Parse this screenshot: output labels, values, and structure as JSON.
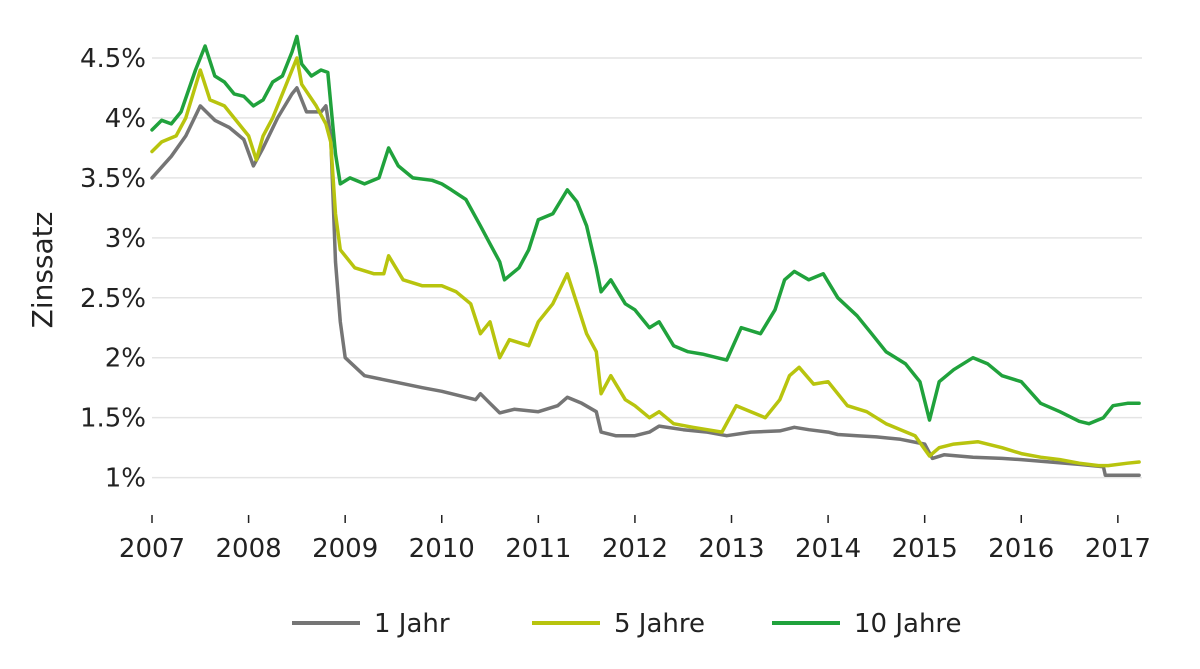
{
  "chart_data": {
    "type": "line",
    "title": "",
    "xlabel": "",
    "ylabel": "Zinssatz",
    "xlim": [
      2007.0,
      2017.25
    ],
    "ylim": [
      0.73,
      4.8
    ],
    "grid": true,
    "legend_position": "bottom",
    "x_ticks": [
      2007,
      2008,
      2009,
      2010,
      2011,
      2012,
      2013,
      2014,
      2015,
      2016,
      2017
    ],
    "x_tick_labels": [
      "2007",
      "2008",
      "2009",
      "2010",
      "2011",
      "2012",
      "2013",
      "2014",
      "2015",
      "2016",
      "2017"
    ],
    "y_ticks": [
      1,
      1.5,
      2,
      2.5,
      3,
      3.5,
      4,
      4.5
    ],
    "y_tick_labels": [
      "1%",
      "1.5%",
      "2%",
      "2.5%",
      "3%",
      "3.5%",
      "4%",
      "4.5%"
    ],
    "series": [
      {
        "name": "1 Jahr",
        "color": "#757575",
        "points": [
          [
            2007.0,
            3.5
          ],
          [
            2007.2,
            3.68
          ],
          [
            2007.35,
            3.85
          ],
          [
            2007.5,
            4.1
          ],
          [
            2007.65,
            3.98
          ],
          [
            2007.8,
            3.92
          ],
          [
            2007.95,
            3.82
          ],
          [
            2008.05,
            3.6
          ],
          [
            2008.15,
            3.75
          ],
          [
            2008.3,
            4.0
          ],
          [
            2008.45,
            4.2
          ],
          [
            2008.5,
            4.25
          ],
          [
            2008.6,
            4.05
          ],
          [
            2008.75,
            4.05
          ],
          [
            2008.8,
            4.1
          ],
          [
            2008.85,
            3.85
          ],
          [
            2008.9,
            2.8
          ],
          [
            2008.95,
            2.3
          ],
          [
            2009.0,
            2.0
          ],
          [
            2009.2,
            1.85
          ],
          [
            2009.5,
            1.8
          ],
          [
            2009.8,
            1.75
          ],
          [
            2010.0,
            1.72
          ],
          [
            2010.2,
            1.68
          ],
          [
            2010.35,
            1.65
          ],
          [
            2010.4,
            1.7
          ],
          [
            2010.5,
            1.62
          ],
          [
            2010.6,
            1.54
          ],
          [
            2010.75,
            1.57
          ],
          [
            2011.0,
            1.55
          ],
          [
            2011.2,
            1.6
          ],
          [
            2011.3,
            1.67
          ],
          [
            2011.45,
            1.62
          ],
          [
            2011.6,
            1.55
          ],
          [
            2011.65,
            1.38
          ],
          [
            2011.8,
            1.35
          ],
          [
            2012.0,
            1.35
          ],
          [
            2012.15,
            1.38
          ],
          [
            2012.25,
            1.43
          ],
          [
            2012.5,
            1.4
          ],
          [
            2012.75,
            1.38
          ],
          [
            2012.95,
            1.35
          ],
          [
            2013.2,
            1.38
          ],
          [
            2013.5,
            1.39
          ],
          [
            2013.65,
            1.42
          ],
          [
            2013.8,
            1.4
          ],
          [
            2014.0,
            1.38
          ],
          [
            2014.1,
            1.36
          ],
          [
            2014.3,
            1.35
          ],
          [
            2014.5,
            1.34
          ],
          [
            2014.75,
            1.32
          ],
          [
            2015.0,
            1.28
          ],
          [
            2015.08,
            1.16
          ],
          [
            2015.2,
            1.19
          ],
          [
            2015.5,
            1.17
          ],
          [
            2015.8,
            1.16
          ],
          [
            2016.0,
            1.15
          ],
          [
            2016.3,
            1.13
          ],
          [
            2016.6,
            1.11
          ],
          [
            2016.85,
            1.09
          ],
          [
            2016.87,
            1.02
          ],
          [
            2017.0,
            1.02
          ],
          [
            2017.22,
            1.02
          ]
        ]
      },
      {
        "name": "5 Jahre",
        "color": "#b8c40e",
        "points": [
          [
            2007.0,
            3.72
          ],
          [
            2007.1,
            3.8
          ],
          [
            2007.25,
            3.85
          ],
          [
            2007.35,
            4.0
          ],
          [
            2007.5,
            4.4
          ],
          [
            2007.6,
            4.15
          ],
          [
            2007.75,
            4.1
          ],
          [
            2007.9,
            3.95
          ],
          [
            2008.0,
            3.85
          ],
          [
            2008.08,
            3.65
          ],
          [
            2008.15,
            3.85
          ],
          [
            2008.25,
            4.0
          ],
          [
            2008.35,
            4.2
          ],
          [
            2008.5,
            4.5
          ],
          [
            2008.55,
            4.28
          ],
          [
            2008.7,
            4.1
          ],
          [
            2008.8,
            3.95
          ],
          [
            2008.85,
            3.8
          ],
          [
            2008.9,
            3.2
          ],
          [
            2008.95,
            2.9
          ],
          [
            2009.1,
            2.75
          ],
          [
            2009.3,
            2.7
          ],
          [
            2009.4,
            2.7
          ],
          [
            2009.45,
            2.85
          ],
          [
            2009.6,
            2.65
          ],
          [
            2009.8,
            2.6
          ],
          [
            2010.0,
            2.6
          ],
          [
            2010.15,
            2.55
          ],
          [
            2010.3,
            2.45
          ],
          [
            2010.4,
            2.2
          ],
          [
            2010.5,
            2.3
          ],
          [
            2010.6,
            2.0
          ],
          [
            2010.7,
            2.15
          ],
          [
            2010.9,
            2.1
          ],
          [
            2011.0,
            2.3
          ],
          [
            2011.15,
            2.45
          ],
          [
            2011.3,
            2.7
          ],
          [
            2011.4,
            2.45
          ],
          [
            2011.5,
            2.2
          ],
          [
            2011.6,
            2.05
          ],
          [
            2011.65,
            1.7
          ],
          [
            2011.75,
            1.85
          ],
          [
            2011.9,
            1.65
          ],
          [
            2012.0,
            1.6
          ],
          [
            2012.15,
            1.5
          ],
          [
            2012.25,
            1.55
          ],
          [
            2012.4,
            1.45
          ],
          [
            2012.6,
            1.42
          ],
          [
            2012.75,
            1.4
          ],
          [
            2012.9,
            1.38
          ],
          [
            2013.05,
            1.6
          ],
          [
            2013.2,
            1.55
          ],
          [
            2013.35,
            1.5
          ],
          [
            2013.5,
            1.65
          ],
          [
            2013.6,
            1.85
          ],
          [
            2013.7,
            1.92
          ],
          [
            2013.85,
            1.78
          ],
          [
            2014.0,
            1.8
          ],
          [
            2014.2,
            1.6
          ],
          [
            2014.4,
            1.55
          ],
          [
            2014.6,
            1.45
          ],
          [
            2014.75,
            1.4
          ],
          [
            2014.9,
            1.35
          ],
          [
            2015.05,
            1.18
          ],
          [
            2015.15,
            1.25
          ],
          [
            2015.3,
            1.28
          ],
          [
            2015.55,
            1.3
          ],
          [
            2015.8,
            1.25
          ],
          [
            2016.0,
            1.2
          ],
          [
            2016.2,
            1.17
          ],
          [
            2016.4,
            1.15
          ],
          [
            2016.6,
            1.12
          ],
          [
            2016.8,
            1.1
          ],
          [
            2016.9,
            1.1
          ],
          [
            2017.1,
            1.12
          ],
          [
            2017.22,
            1.13
          ]
        ]
      },
      {
        "name": "10 Jahre",
        "color": "#20a23c",
        "points": [
          [
            2007.0,
            3.9
          ],
          [
            2007.1,
            3.98
          ],
          [
            2007.2,
            3.95
          ],
          [
            2007.3,
            4.05
          ],
          [
            2007.45,
            4.4
          ],
          [
            2007.55,
            4.6
          ],
          [
            2007.65,
            4.35
          ],
          [
            2007.75,
            4.3
          ],
          [
            2007.85,
            4.2
          ],
          [
            2007.95,
            4.18
          ],
          [
            2008.05,
            4.1
          ],
          [
            2008.15,
            4.15
          ],
          [
            2008.25,
            4.3
          ],
          [
            2008.35,
            4.35
          ],
          [
            2008.45,
            4.55
          ],
          [
            2008.5,
            4.68
          ],
          [
            2008.55,
            4.45
          ],
          [
            2008.65,
            4.35
          ],
          [
            2008.75,
            4.4
          ],
          [
            2008.82,
            4.38
          ],
          [
            2008.9,
            3.7
          ],
          [
            2008.95,
            3.45
          ],
          [
            2009.05,
            3.5
          ],
          [
            2009.2,
            3.45
          ],
          [
            2009.35,
            3.5
          ],
          [
            2009.45,
            3.75
          ],
          [
            2009.55,
            3.6
          ],
          [
            2009.7,
            3.5
          ],
          [
            2009.9,
            3.48
          ],
          [
            2010.0,
            3.45
          ],
          [
            2010.1,
            3.4
          ],
          [
            2010.25,
            3.32
          ],
          [
            2010.4,
            3.1
          ],
          [
            2010.5,
            2.95
          ],
          [
            2010.6,
            2.8
          ],
          [
            2010.65,
            2.65
          ],
          [
            2010.8,
            2.75
          ],
          [
            2010.9,
            2.9
          ],
          [
            2011.0,
            3.15
          ],
          [
            2011.15,
            3.2
          ],
          [
            2011.3,
            3.4
          ],
          [
            2011.4,
            3.3
          ],
          [
            2011.5,
            3.1
          ],
          [
            2011.6,
            2.75
          ],
          [
            2011.65,
            2.55
          ],
          [
            2011.75,
            2.65
          ],
          [
            2011.9,
            2.45
          ],
          [
            2012.0,
            2.4
          ],
          [
            2012.15,
            2.25
          ],
          [
            2012.25,
            2.3
          ],
          [
            2012.4,
            2.1
          ],
          [
            2012.55,
            2.05
          ],
          [
            2012.7,
            2.03
          ],
          [
            2012.85,
            2.0
          ],
          [
            2012.95,
            1.98
          ],
          [
            2013.1,
            2.25
          ],
          [
            2013.3,
            2.2
          ],
          [
            2013.45,
            2.4
          ],
          [
            2013.55,
            2.65
          ],
          [
            2013.65,
            2.72
          ],
          [
            2013.8,
            2.65
          ],
          [
            2013.95,
            2.7
          ],
          [
            2014.1,
            2.5
          ],
          [
            2014.3,
            2.35
          ],
          [
            2014.45,
            2.2
          ],
          [
            2014.6,
            2.05
          ],
          [
            2014.8,
            1.95
          ],
          [
            2014.95,
            1.8
          ],
          [
            2015.05,
            1.48
          ],
          [
            2015.15,
            1.8
          ],
          [
            2015.3,
            1.9
          ],
          [
            2015.5,
            2.0
          ],
          [
            2015.65,
            1.95
          ],
          [
            2015.8,
            1.85
          ],
          [
            2016.0,
            1.8
          ],
          [
            2016.2,
            1.62
          ],
          [
            2016.4,
            1.55
          ],
          [
            2016.6,
            1.47
          ],
          [
            2016.7,
            1.45
          ],
          [
            2016.85,
            1.5
          ],
          [
            2016.95,
            1.6
          ],
          [
            2017.1,
            1.62
          ],
          [
            2017.22,
            1.62
          ]
        ]
      }
    ]
  }
}
